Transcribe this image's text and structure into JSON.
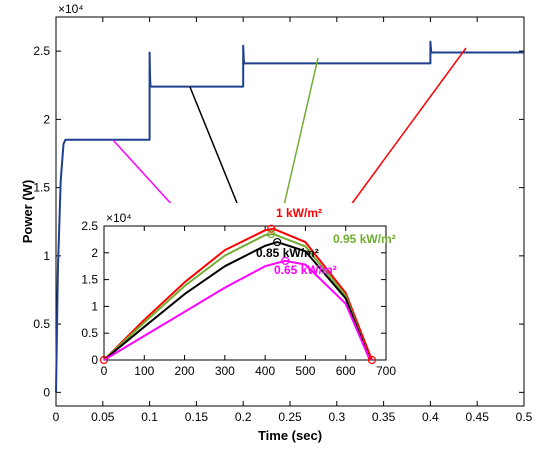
{
  "chart_data": [
    {
      "type": "line",
      "title": "",
      "xlabel": "Time (sec)",
      "ylabel": "Power (W)",
      "exponent_label": "×10⁴",
      "xlim": [
        0,
        0.5
      ],
      "ylim": [
        -0.1,
        2.75
      ],
      "xticks": [
        "0",
        "0.05",
        "0.1",
        "0.15",
        "0.2",
        "0.25",
        "0.3",
        "0.35",
        "0.4",
        "0.45",
        "0.5"
      ],
      "yticks": [
        "0",
        "0.5",
        "1",
        "1.5",
        "2",
        "2.5"
      ],
      "grid": false,
      "series": [
        {
          "color": "#1f3f8f",
          "x": [
            0,
            0.002,
            0.005,
            0.008,
            0.01,
            0.1,
            0.1,
            0.1005,
            0.101,
            0.2,
            0.2,
            0.2005,
            0.201,
            0.4,
            0.4,
            0.4005,
            0.401,
            0.5
          ],
          "y": [
            0,
            0.9,
            1.55,
            1.82,
            1.85,
            1.85,
            2.49,
            2.3,
            2.24,
            2.24,
            2.54,
            2.45,
            2.41,
            2.41,
            2.57,
            2.52,
            2.49,
            2.49
          ]
        }
      ]
    },
    {
      "type": "line",
      "title": "",
      "xlabel": "",
      "ylabel": "",
      "exponent_label": "×10⁴",
      "xlim": [
        0,
        700
      ],
      "ylim": [
        0,
        2.5
      ],
      "xticks": [
        "0",
        "100",
        "200",
        "300",
        "400",
        "500",
        "600",
        "700"
      ],
      "yticks": [
        "0",
        "0.5",
        "1",
        "1.5",
        "2",
        "2.5"
      ],
      "grid": false,
      "series": [
        {
          "name": "1 kW/m²",
          "color": "#ff0000",
          "x": [
            0,
            100,
            200,
            300,
            400,
            420,
            500,
            600,
            665
          ],
          "y": [
            0,
            0.75,
            1.45,
            2.05,
            2.42,
            2.45,
            2.2,
            1.25,
            0
          ]
        },
        {
          "name": "0.95 kW/m²",
          "color": "#70ad30",
          "x": [
            0,
            100,
            200,
            300,
            400,
            420,
            500,
            600,
            660
          ],
          "y": [
            0,
            0.7,
            1.38,
            1.95,
            2.33,
            2.35,
            2.12,
            1.2,
            0
          ]
        },
        {
          "name": "0.85 kW/m²",
          "color": "#000000",
          "x": [
            0,
            100,
            200,
            300,
            400,
            430,
            500,
            600,
            660
          ],
          "y": [
            0,
            0.62,
            1.23,
            1.75,
            2.13,
            2.2,
            2.03,
            1.15,
            0
          ]
        },
        {
          "name": "0.65 kW/m²",
          "color": "#ff00ff",
          "x": [
            0,
            100,
            200,
            300,
            400,
            450,
            500,
            600,
            660
          ],
          "y": [
            0,
            0.45,
            0.9,
            1.35,
            1.75,
            1.85,
            1.78,
            1.05,
            0
          ]
        }
      ],
      "annotations": {
        "mpp_markers": [
          {
            "x": 415,
            "y": 2.45
          },
          {
            "x": 415,
            "y": 2.35
          },
          {
            "x": 430,
            "y": 2.2
          },
          {
            "x": 450,
            "y": 1.85
          }
        ],
        "endpoint_markers": [
          {
            "x": 0,
            "y": 0
          },
          {
            "x": 665,
            "y": 0
          }
        ]
      }
    }
  ]
}
